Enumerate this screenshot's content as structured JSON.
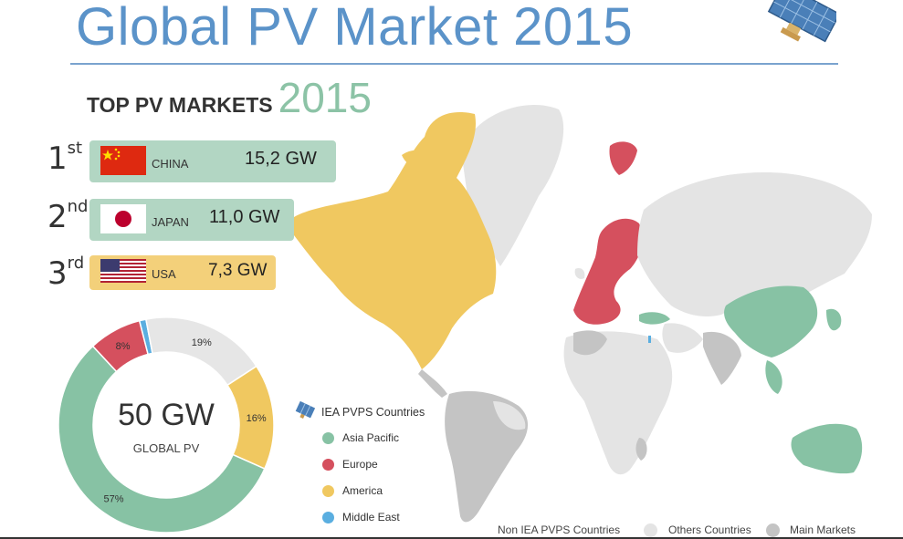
{
  "title": "Global PV Market 2015",
  "heading": {
    "label": "TOP PV MARKETS",
    "year": "2015"
  },
  "ranks": [
    {
      "rank": "1",
      "suffix": "st",
      "country": "CHINA",
      "value": "15,2 GW",
      "color": "#b2d6c3",
      "flag": "china-flag-icon"
    },
    {
      "rank": "2",
      "suffix": "nd",
      "country": "JAPAN",
      "value": "11,0 GW",
      "color": "#b2d6c3",
      "flag": "japan-flag-icon"
    },
    {
      "rank": "3",
      "suffix": "rd",
      "country": "USA",
      "value": "7,3 GW",
      "color": "#f3d07a",
      "flag": "usa-flag-icon"
    }
  ],
  "donut": {
    "center_value": "50 GW",
    "center_label": "GLOBAL PV"
  },
  "chart_data": {
    "type": "pie",
    "title": "TOP PV MARKETS 2015",
    "total_label": "50 GW GLOBAL PV",
    "slices": [
      {
        "label": "Asia Pacific",
        "value": 57,
        "display": "57%",
        "color": "#87c2a4"
      },
      {
        "label": "Europe",
        "value": 8,
        "display": "8%",
        "color": "#d5505e"
      },
      {
        "label": "Middle East",
        "value": 1,
        "display": "",
        "color": "#5aaee0"
      },
      {
        "label": "Others Countries",
        "value": 19,
        "display": "19%",
        "color": "#e6e6e6"
      },
      {
        "label": "America",
        "value": 16,
        "display": "16%",
        "color": "#f0c860"
      }
    ]
  },
  "legend": {
    "title": "IEA PVPS Countries",
    "items": [
      {
        "label": "Asia Pacific",
        "color": "#87c2a4"
      },
      {
        "label": "Europe",
        "color": "#d5505e"
      },
      {
        "label": "America",
        "color": "#f0c860"
      },
      {
        "label": "Middle East",
        "color": "#5aaee0"
      }
    ]
  },
  "bottom_legend": {
    "title": "Non IEA PVPS Countries",
    "others": "Others Countries",
    "main": "Main Markets",
    "others_color": "#e4e4e4",
    "main_color": "#c4c4c4"
  },
  "colors": {
    "title": "#5b93c9",
    "map_other": "#e4e4e4",
    "map_main": "#c4c4c4"
  }
}
